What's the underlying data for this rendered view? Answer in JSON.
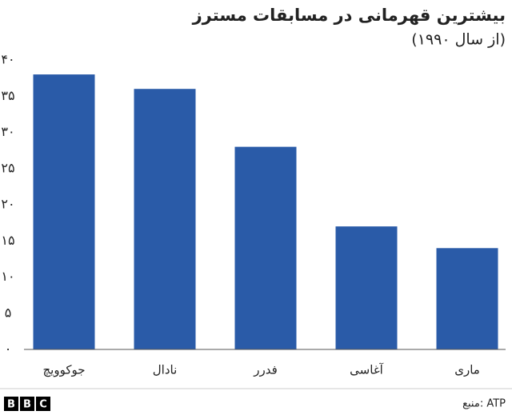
{
  "chart_data": {
    "type": "bar",
    "title": "بیشترین قهرمانی در مسابقات مسترز",
    "subtitle": "(از سال ۱۹۹۰)",
    "categories": [
      "جوکوویچ",
      "نادال",
      "فدرر",
      "آغاسی",
      "ماری"
    ],
    "values": [
      38,
      36,
      28,
      17,
      14
    ],
    "color": "#2a5ba8",
    "ylim": [
      0,
      40
    ],
    "yticks": [
      {
        "value": 0,
        "label": "۰"
      },
      {
        "value": 5,
        "label": "۵"
      },
      {
        "value": 10,
        "label": "۱۰"
      },
      {
        "value": 15,
        "label": "۱۵"
      },
      {
        "value": 20,
        "label": "۲۰"
      },
      {
        "value": 25,
        "label": "۲۵"
      },
      {
        "value": 30,
        "label": "۳۰"
      },
      {
        "value": 35,
        "label": "۳۵"
      },
      {
        "value": 40,
        "label": "۴۰"
      }
    ],
    "grid": false,
    "source": "منبع: ATP",
    "logo": [
      "B",
      "B",
      "C"
    ]
  }
}
